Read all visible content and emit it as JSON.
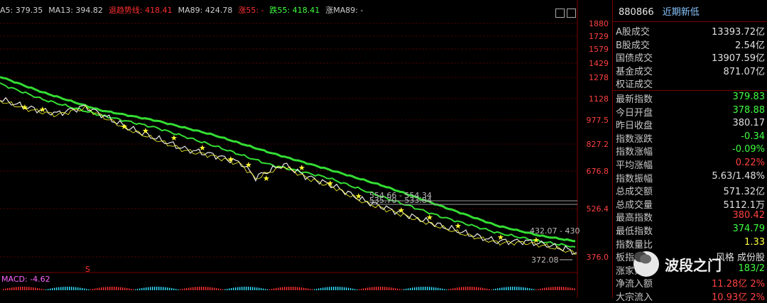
{
  "legend": {
    "items": [
      {
        "text": "A5: 379.35",
        "color": "#d0d0d0"
      },
      {
        "text": "MA13: 394.82",
        "color": "#d0d0d0"
      },
      {
        "text": "退趋势线: 418.41",
        "color": "#ff3030"
      },
      {
        "text": "MA89: 424.78",
        "color": "#d0d0d0"
      },
      {
        "text": "涨55: -",
        "color": "#ff3030"
      },
      {
        "text": "跌55: 418.41",
        "color": "#40ff40"
      },
      {
        "text": "涨MA89: -",
        "color": "#d0d0d0"
      }
    ]
  },
  "axis": {
    "ticks": [
      "1880",
      "1729",
      "1579",
      "1429",
      "1278",
      "1128",
      "977.5",
      "827.2",
      "676.8",
      "526.4",
      "376.0"
    ]
  },
  "annotations": {
    "hline1": "554.66 - 554.34",
    "hline2": "535.70 - 533.84",
    "near_end": "432.07 - 430",
    "low": "372.08"
  },
  "macd_label": "MACD: -4.62",
  "info": {
    "code": "880866",
    "name": "近期新低",
    "rows1": [
      {
        "label": "A股成交",
        "value": "13393.72亿",
        "color": "#e0e0e0"
      },
      {
        "label": "B股成交",
        "value": "2.54亿",
        "color": "#e0e0e0"
      },
      {
        "label": "国债成交",
        "value": "13907.59亿",
        "color": "#e0e0e0"
      },
      {
        "label": "基金成交",
        "value": "871.07亿",
        "color": "#e0e0e0"
      },
      {
        "label": "权证成交",
        "value": "",
        "color": "#e0e0e0"
      }
    ],
    "rows2": [
      {
        "label": "最新指数",
        "value": "379.83",
        "color": "#40ff40"
      },
      {
        "label": "今日开盘",
        "value": "378.88",
        "color": "#40ff40"
      },
      {
        "label": "昨日收盘",
        "value": "380.17",
        "color": "#e0e0e0"
      },
      {
        "label": "指数涨跌",
        "value": "-0.34",
        "color": "#40ff40"
      },
      {
        "label": "指数涨幅",
        "value": "-0.09%",
        "color": "#40ff40"
      },
      {
        "label": "平均涨幅",
        "value": "0.22%",
        "color": "#ff4040"
      },
      {
        "label": "指数振幅",
        "value": "5.63/1.48%",
        "color": "#e0e0e0"
      },
      {
        "label": "总成交额",
        "value": "571.32亿",
        "color": "#e0e0e0"
      },
      {
        "label": "总成交量",
        "value": "5112.1万",
        "color": "#e0e0e0"
      },
      {
        "label": "最高指数",
        "value": "380.42",
        "color": "#ff4040"
      },
      {
        "label": "最低指数",
        "value": "374.79",
        "color": "#40ff40"
      },
      {
        "label": "指数量比",
        "value": "1.33",
        "color": "#ffff40"
      },
      {
        "label": "板指类型",
        "value": "风格 成份股",
        "color": "#e0e0e0"
      },
      {
        "label": "涨家数",
        "value": "183/2",
        "color": "#40ff40"
      },
      {
        "label": "净流入额",
        "value": "11.28亿 2%",
        "color": "#ff4040"
      },
      {
        "label": "大宗流入",
        "value": "10.93亿 2%",
        "color": "#ff4040"
      }
    ]
  },
  "watermark": "波段之门",
  "colors": {
    "ma_green": "#33dd33",
    "price_white": "#e8e8e8",
    "grid_red": "#7a0000",
    "star_yellow": "#ffff30"
  }
}
